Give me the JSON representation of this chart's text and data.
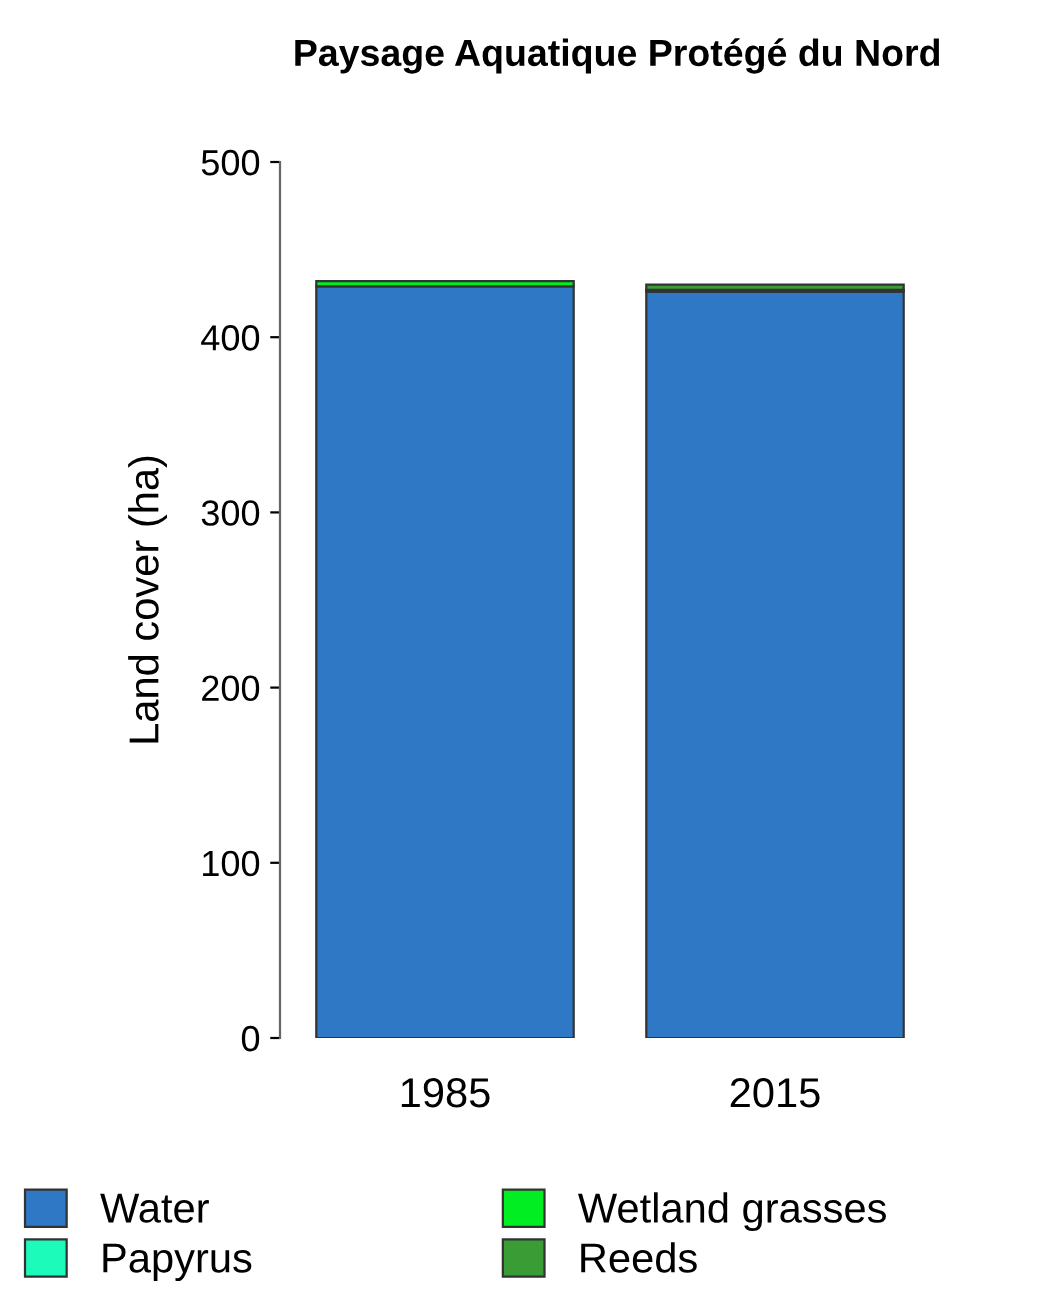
{
  "chart_data": {
    "type": "bar",
    "stacked": true,
    "title": "Paysage Aquatique Protégé du Nord",
    "ylabel": "Land cover (ha)",
    "categories": [
      "1985",
      "2015"
    ],
    "series": [
      {
        "name": "Water",
        "color": "#2e78c5",
        "values": [
          429,
          426
        ]
      },
      {
        "name": "Papyrus",
        "color": "#1dfbbb",
        "values": [
          0,
          0
        ]
      },
      {
        "name": "Wetland grasses",
        "color": "#00ee22",
        "values": [
          3,
          1
        ]
      },
      {
        "name": "Reeds",
        "color": "#3a9c34",
        "values": [
          0,
          3
        ]
      }
    ],
    "ylim": [
      0,
      500
    ],
    "yticks": [
      0,
      100,
      200,
      300,
      400,
      500
    ],
    "grid": false,
    "legend": "bottom"
  }
}
